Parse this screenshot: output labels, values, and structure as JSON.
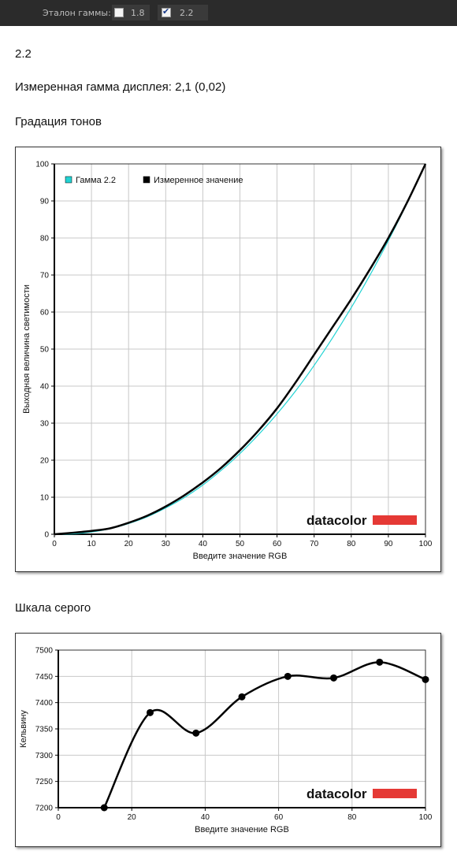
{
  "toolbar": {
    "label": "Эталон гаммы:",
    "option1": "1.8",
    "option2": "2.2",
    "option1_checked": false,
    "option2_checked": true
  },
  "value_text": "2.2",
  "measured_text": "Измеренная гамма дисплея: 2,1 (0,02)",
  "section_tone": "Градация тонов",
  "section_gray": "Шкала серого",
  "chart_data": [
    {
      "type": "line",
      "xlabel": "Введите значение RGB",
      "ylabel": "Выходная величина светимости",
      "xlim": [
        0,
        100
      ],
      "ylim": [
        0,
        100
      ],
      "xticks": [
        "0",
        "10",
        "20",
        "30",
        "40",
        "50",
        "60",
        "70",
        "80",
        "90",
        "100"
      ],
      "yticks": [
        "0",
        "10",
        "20",
        "30",
        "40",
        "50",
        "60",
        "70",
        "80",
        "90",
        "100"
      ],
      "grid": true,
      "legend_position": "top-left",
      "logo": "datacolor",
      "series": [
        {
          "name": "Гамма 2.2",
          "color": "#22d3d3",
          "x": [
            0,
            5,
            10,
            15,
            20,
            25,
            30,
            35,
            40,
            45,
            50,
            55,
            60,
            65,
            70,
            75,
            80,
            85,
            90,
            95,
            100
          ],
          "y": [
            0,
            0.1,
            0.6,
            1.5,
            2.9,
            4.7,
            7.1,
            9.9,
            13.3,
            17.3,
            21.8,
            26.9,
            32.5,
            38.7,
            45.6,
            53.1,
            61.2,
            69.9,
            79.3,
            89.3,
            100
          ]
        },
        {
          "name": "Измеренное значение",
          "color": "#000000",
          "x": [
            0,
            5,
            10,
            15,
            20,
            25,
            30,
            35,
            40,
            45,
            50,
            55,
            60,
            65,
            70,
            75,
            80,
            85,
            90,
            95,
            100
          ],
          "y": [
            0,
            0.4,
            0.9,
            1.6,
            3.1,
            5.0,
            7.5,
            10.5,
            14.0,
            18.0,
            22.7,
            28.0,
            34.0,
            41.0,
            48.5,
            56.0,
            63.5,
            71.5,
            80.0,
            89.5,
            100
          ]
        }
      ]
    },
    {
      "type": "line",
      "xlabel": "Введите значение RGB",
      "ylabel": "Кельвину",
      "xlim": [
        0,
        100
      ],
      "ylim": [
        7200,
        7500
      ],
      "xticks": [
        "0",
        "20",
        "40",
        "60",
        "80",
        "100"
      ],
      "yticks": [
        "7200",
        "7250",
        "7300",
        "7350",
        "7400",
        "7450",
        "7500"
      ],
      "grid": true,
      "logo": "datacolor",
      "series": [
        {
          "color": "#000000",
          "x": [
            12.5,
            25,
            37.5,
            50,
            62.5,
            75,
            87.5,
            100
          ],
          "y": [
            7200,
            7381,
            7342,
            7411,
            7450,
            7447,
            7477,
            7444
          ]
        }
      ]
    }
  ]
}
